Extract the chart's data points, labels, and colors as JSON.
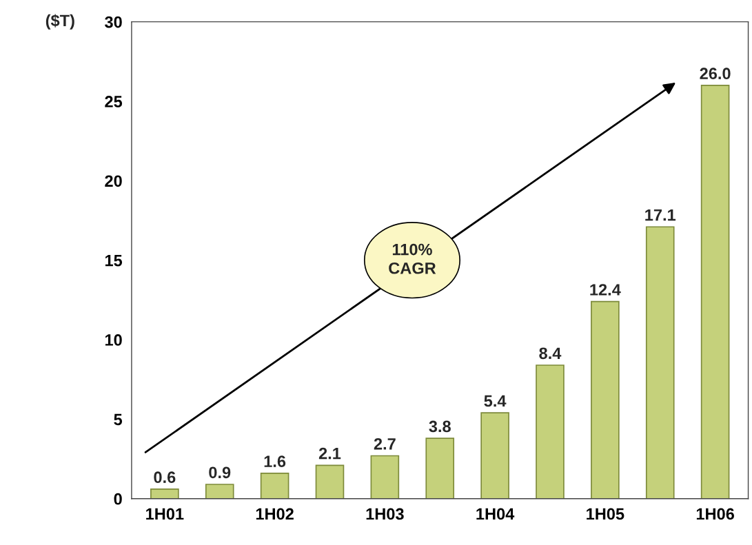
{
  "chart_data": {
    "type": "bar",
    "ylabel": "($T)",
    "categories": [
      "1H01",
      null,
      "1H02",
      null,
      "1H03",
      null,
      "1H04",
      null,
      "1H05",
      null,
      "1H06"
    ],
    "values": [
      0.6,
      0.9,
      1.6,
      2.1,
      2.7,
      3.8,
      5.4,
      8.4,
      12.4,
      17.1,
      26.0
    ],
    "value_labels": [
      "0.6",
      "0.9",
      "1.6",
      "2.1",
      "2.7",
      "3.8",
      "5.4",
      "8.4",
      "12.4",
      "17.1",
      "26.0"
    ],
    "color": "#c5d17b",
    "ylim": [
      0,
      30
    ],
    "yticks": [
      0,
      5,
      10,
      15,
      20,
      25,
      30
    ],
    "annotations": [
      "110%\nCAGR"
    ],
    "grid": false
  }
}
